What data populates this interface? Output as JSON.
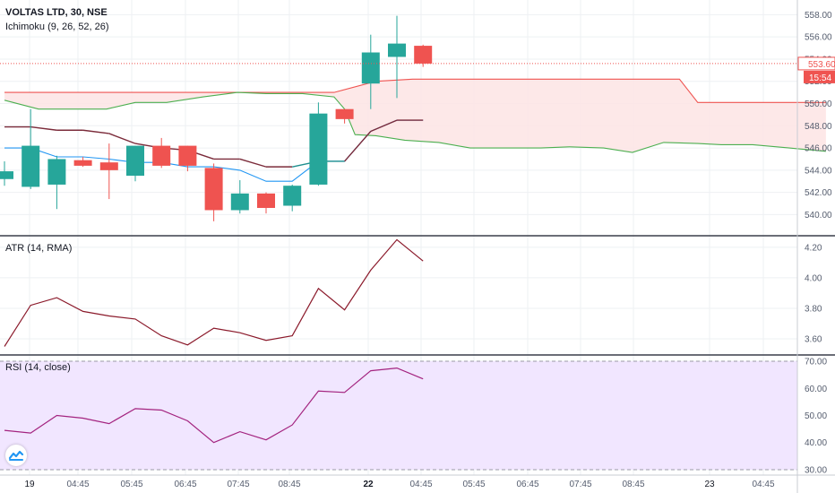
{
  "chart_data": {
    "type": "candlestick",
    "symbol": "VOLTAS LTD, 30, NSE",
    "indicator_ichimoku": "Ichimoku (9, 26, 52, 26)",
    "indicator_atr": "ATR (14, RMA)",
    "indicator_rsi": "RSI (14, close)",
    "last_price_label": "553.60",
    "countdown_label": "15:54",
    "x_tick_labels": [
      "19",
      "04:45",
      "05:45",
      "06:45",
      "07:45",
      "08:45",
      "22",
      "04:45",
      "05:45",
      "06:45",
      "07:45",
      "08:45",
      "23",
      "04:45"
    ],
    "price_axis": {
      "ylim": [
        538.5,
        559
      ],
      "ticks": [
        "540.00",
        "542.00",
        "544.00",
        "546.00",
        "548.00",
        "550.00",
        "552.00",
        "554.00",
        "556.00",
        "558.00"
      ]
    },
    "atr_axis": {
      "ylim": [
        3.5,
        4.27
      ],
      "ticks": [
        "3.60",
        "3.80",
        "4.00",
        "4.20"
      ]
    },
    "rsi_axis": {
      "ylim": [
        28,
        72
      ],
      "ticks": [
        "30.00",
        "40.00",
        "50.00",
        "60.00",
        "70.00"
      ],
      "band": [
        30,
        70
      ]
    },
    "candles": [
      {
        "o": 543.2,
        "h": 544.8,
        "l": 542.6,
        "c": 543.9
      },
      {
        "o": 542.5,
        "h": 549.5,
        "l": 542.3,
        "c": 546.2
      },
      {
        "o": 542.7,
        "h": 545.3,
        "l": 540.5,
        "c": 545.0
      },
      {
        "o": 544.9,
        "h": 545.2,
        "l": 544.3,
        "c": 544.4
      },
      {
        "o": 544.7,
        "h": 546.4,
        "l": 541.4,
        "c": 544.0
      },
      {
        "o": 543.5,
        "h": 546.2,
        "l": 543.0,
        "c": 546.2
      },
      {
        "o": 546.2,
        "h": 546.9,
        "l": 544.2,
        "c": 544.4
      },
      {
        "o": 546.2,
        "h": 546.2,
        "l": 543.9,
        "c": 544.4
      },
      {
        "o": 544.2,
        "h": 544.6,
        "l": 539.4,
        "c": 540.4
      },
      {
        "o": 540.4,
        "h": 543.1,
        "l": 540.1,
        "c": 541.9
      },
      {
        "o": 541.9,
        "h": 542.0,
        "l": 540.1,
        "c": 540.6
      },
      {
        "o": 540.8,
        "h": 542.7,
        "l": 540.3,
        "c": 542.6
      },
      {
        "o": 542.7,
        "h": 550.1,
        "l": 542.6,
        "c": 549.1
      },
      {
        "o": 549.5,
        "h": 549.5,
        "l": 548.2,
        "c": 548.6
      },
      {
        "o": 551.8,
        "h": 556.2,
        "l": 549.5,
        "c": 554.6
      },
      {
        "o": 554.2,
        "h": 557.9,
        "l": 550.5,
        "c": 555.4
      },
      {
        "o": 555.2,
        "h": 555.3,
        "l": 553.3,
        "c": 553.6
      }
    ],
    "tenkan": [
      546.0,
      546.0,
      545.2,
      545.2,
      545.0,
      544.7,
      544.7,
      544.3,
      544.3,
      544.0,
      543.0,
      543.0,
      544.8,
      544.8,
      547.5,
      548.5,
      548.5
    ],
    "kijun": [
      547.9,
      547.9,
      547.6,
      547.6,
      547.3,
      546.4,
      546.0,
      545.8,
      545.0,
      545.0,
      544.3,
      544.3,
      544.8,
      544.8,
      547.5,
      548.5,
      548.5
    ],
    "kijun_colors": [
      "#7b2b3a",
      "#1f8f8f"
    ],
    "span_a_x": [
      0,
      1.3,
      2.5,
      3.9,
      5.0,
      6.2,
      7.6,
      8.9,
      10.0,
      11.4,
      12.6,
      13.0,
      13.4,
      14.2,
      15.3,
      16.6,
      17.8,
      19.2,
      20.5,
      21.6,
      22.9,
      24.0,
      25.2,
      26.5,
      27.4,
      28.6,
      30.0,
      31.4
    ],
    "span_a": [
      550.3,
      549.5,
      549.5,
      549.5,
      550.1,
      550.1,
      550.6,
      551.0,
      550.9,
      550.9,
      550.6,
      549.5,
      547.2,
      547.1,
      546.7,
      546.5,
      546.0,
      546.0,
      546.0,
      546.1,
      546.0,
      545.6,
      546.5,
      546.4,
      546.3,
      546.3,
      546.0,
      545.7
    ],
    "span_b_x": [
      0,
      12.6,
      14.2,
      15.6,
      22.9,
      25.8,
      26.5,
      31.4
    ],
    "span_b": [
      551.0,
      551.0,
      552.0,
      552.2,
      552.2,
      552.2,
      550.1,
      550.1
    ],
    "atr": [
      3.55,
      3.82,
      3.87,
      3.78,
      3.75,
      3.73,
      3.62,
      3.56,
      3.67,
      3.64,
      3.59,
      3.62,
      3.93,
      3.79,
      4.05,
      4.25,
      4.11
    ],
    "rsi": [
      44.5,
      43.5,
      50.0,
      49.0,
      47.0,
      52.5,
      52.0,
      48.0,
      40.0,
      44.0,
      41.0,
      46.5,
      59.0,
      58.5,
      66.5,
      67.5,
      63.5
    ],
    "colors": {
      "up": "#26a69a",
      "down": "#ef5350",
      "tenkan": "#2196f3",
      "kijun_down": "#7b2b3a",
      "span_a": "#4caf50",
      "span_b": "#ef5350",
      "cloud_fill": "#fde4e4",
      "atr": "#8b1a2b",
      "rsi": "#a3237f",
      "rsi_band": "#f1e6ff",
      "grid": "#eef0f3",
      "axis_text": "#555d6e",
      "price_label_bg": "#ef5350"
    }
  }
}
